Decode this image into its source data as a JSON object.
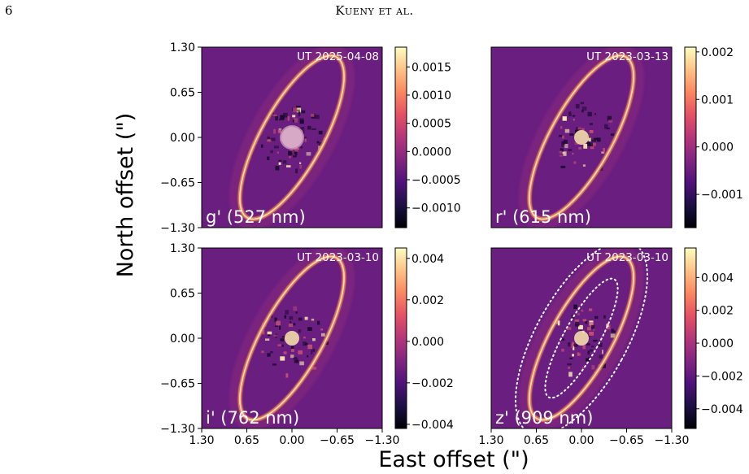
{
  "header": {
    "page_number": "6",
    "running_head": "Kueny et al."
  },
  "figure": {
    "ylabel": "North offset (\")",
    "xlabel": "East offset (\")",
    "axis_tick_labels": [
      "1.30",
      "0.65",
      "0.00",
      "−0.65",
      "−1.30"
    ],
    "colors": {
      "colormap": [
        "#000004",
        "#1c1044",
        "#4f127b",
        "#812581",
        "#b5367a",
        "#e55064",
        "#fb8761",
        "#fec287",
        "#fcfdbf"
      ],
      "panel_background": "#6a1e80"
    },
    "panels": [
      {
        "id": "gprime",
        "filter_label": "g' (527 nm)",
        "date_label": "UT 2025-04-08",
        "colorbar_ticks": [
          "0.0015",
          "0.0010",
          "0.0005",
          "0.0000",
          "−0.0005",
          "−0.0010"
        ],
        "colorbar_range": [
          -0.00135,
          0.00185
        ],
        "colorbar_values": [
          0.0015,
          0.001,
          0.0005,
          0.0,
          -0.0005,
          -0.001
        ],
        "has_ellipse_overlay": false
      },
      {
        "id": "rprime",
        "filter_label": "r' (615 nm)",
        "date_label": "UT 2023-03-13",
        "colorbar_ticks": [
          "0.002",
          "0.001",
          "0.000",
          "−0.001"
        ],
        "colorbar_range": [
          -0.0017,
          0.0021
        ],
        "colorbar_values": [
          0.002,
          0.001,
          0.0,
          -0.001
        ],
        "has_ellipse_overlay": false
      },
      {
        "id": "iprime",
        "filter_label": "i' (762 nm)",
        "date_label": "UT 2023-03-10",
        "colorbar_ticks": [
          "0.004",
          "0.002",
          "0.000",
          "−0.002",
          "−0.004"
        ],
        "colorbar_range": [
          -0.0042,
          0.0045
        ],
        "colorbar_values": [
          0.004,
          0.002,
          0.0,
          -0.002,
          -0.004
        ],
        "has_ellipse_overlay": false
      },
      {
        "id": "zprime",
        "filter_label": "z' (909 nm)",
        "date_label": "UT 2023-03-10",
        "colorbar_ticks": [
          "0.004",
          "0.002",
          "0.000",
          "−0.002",
          "−0.004"
        ],
        "colorbar_range": [
          -0.0052,
          0.0058
        ],
        "colorbar_values": [
          0.004,
          0.002,
          0.0,
          -0.002,
          -0.004
        ],
        "has_ellipse_overlay": true
      }
    ]
  }
}
